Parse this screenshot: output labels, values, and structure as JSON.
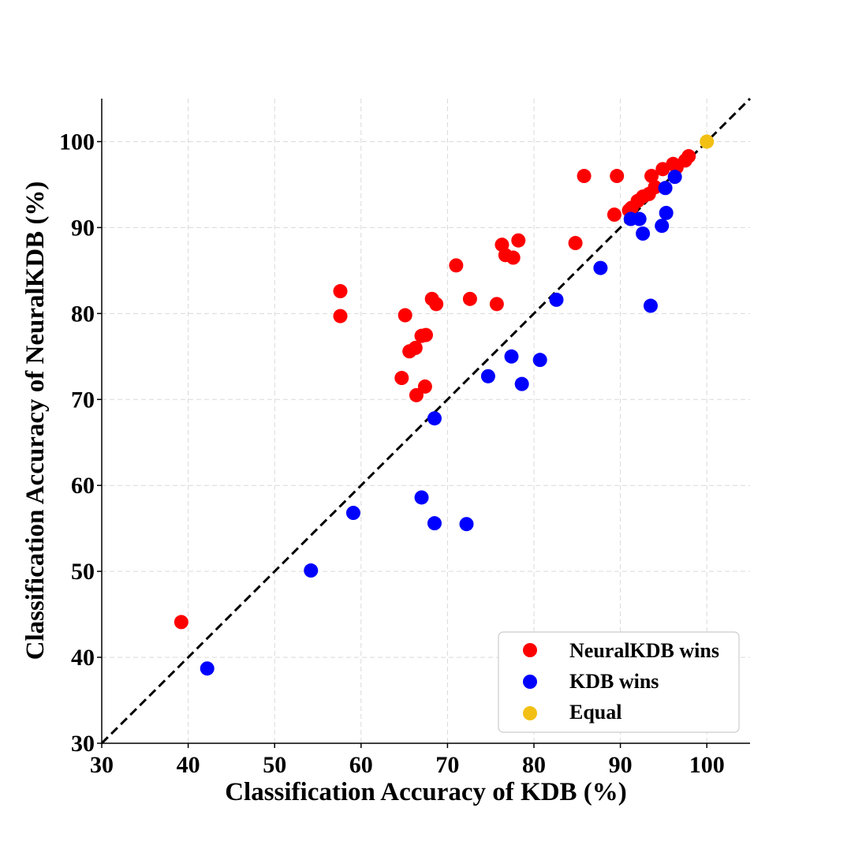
{
  "chart_data": {
    "type": "scatter",
    "title": "",
    "xlabel": "Classification Accuracy of KDB (%)",
    "ylabel": "Classification Accuracy of NeuralKDB (%)",
    "xlim": [
      30,
      105
    ],
    "ylim": [
      30,
      105
    ],
    "xticks": [
      30,
      40,
      50,
      60,
      70,
      80,
      90,
      100
    ],
    "yticks": [
      30,
      40,
      50,
      60,
      70,
      80,
      90,
      100
    ],
    "grid": true,
    "diagonal": {
      "from": [
        30,
        30
      ],
      "to": [
        105,
        105
      ],
      "style": "dashed",
      "color": "#000000"
    },
    "legend_position": "bottom-right",
    "series": [
      {
        "name": "NeuralKDB wins",
        "color": "#ff0000",
        "points": [
          [
            39.2,
            44.1
          ],
          [
            57.6,
            82.6
          ],
          [
            57.6,
            79.7
          ],
          [
            64.7,
            72.5
          ],
          [
            65.1,
            79.8
          ],
          [
            65.6,
            75.6
          ],
          [
            66.3,
            76.0
          ],
          [
            66.4,
            70.5
          ],
          [
            67.0,
            77.4
          ],
          [
            67.5,
            77.5
          ],
          [
            67.4,
            71.5
          ],
          [
            68.2,
            81.7
          ],
          [
            68.7,
            81.1
          ],
          [
            71.0,
            85.6
          ],
          [
            72.6,
            81.7
          ],
          [
            75.7,
            81.1
          ],
          [
            76.3,
            88.0
          ],
          [
            76.7,
            86.8
          ],
          [
            77.6,
            86.5
          ],
          [
            78.2,
            88.5
          ],
          [
            84.8,
            88.2
          ],
          [
            85.8,
            96.0
          ],
          [
            89.3,
            91.5
          ],
          [
            89.6,
            96.0
          ],
          [
            91.0,
            92.0
          ],
          [
            91.3,
            92.3
          ],
          [
            92.0,
            93.1
          ],
          [
            92.6,
            93.6
          ],
          [
            93.3,
            93.9
          ],
          [
            93.6,
            96.0
          ],
          [
            94.0,
            94.7
          ],
          [
            94.9,
            96.8
          ],
          [
            96.1,
            97.4
          ],
          [
            96.5,
            97.0
          ],
          [
            97.5,
            97.8
          ],
          [
            97.9,
            98.3
          ]
        ]
      },
      {
        "name": "KDB wins",
        "color": "#0000ff",
        "points": [
          [
            42.2,
            38.7
          ],
          [
            54.2,
            50.1
          ],
          [
            59.1,
            56.8
          ],
          [
            67.0,
            58.6
          ],
          [
            68.5,
            55.6
          ],
          [
            68.5,
            67.8
          ],
          [
            72.2,
            55.5
          ],
          [
            74.7,
            72.7
          ],
          [
            77.4,
            75.0
          ],
          [
            78.6,
            71.8
          ],
          [
            80.7,
            74.6
          ],
          [
            82.6,
            81.6
          ],
          [
            87.7,
            85.3
          ],
          [
            91.2,
            91.0
          ],
          [
            92.2,
            91.0
          ],
          [
            92.6,
            89.3
          ],
          [
            93.5,
            80.9
          ],
          [
            94.8,
            90.2
          ],
          [
            95.2,
            94.6
          ],
          [
            95.3,
            91.7
          ],
          [
            96.3,
            95.9
          ]
        ]
      },
      {
        "name": "Equal",
        "color": "#f2c013",
        "points": [
          [
            100.0,
            100.0
          ]
        ]
      }
    ]
  }
}
